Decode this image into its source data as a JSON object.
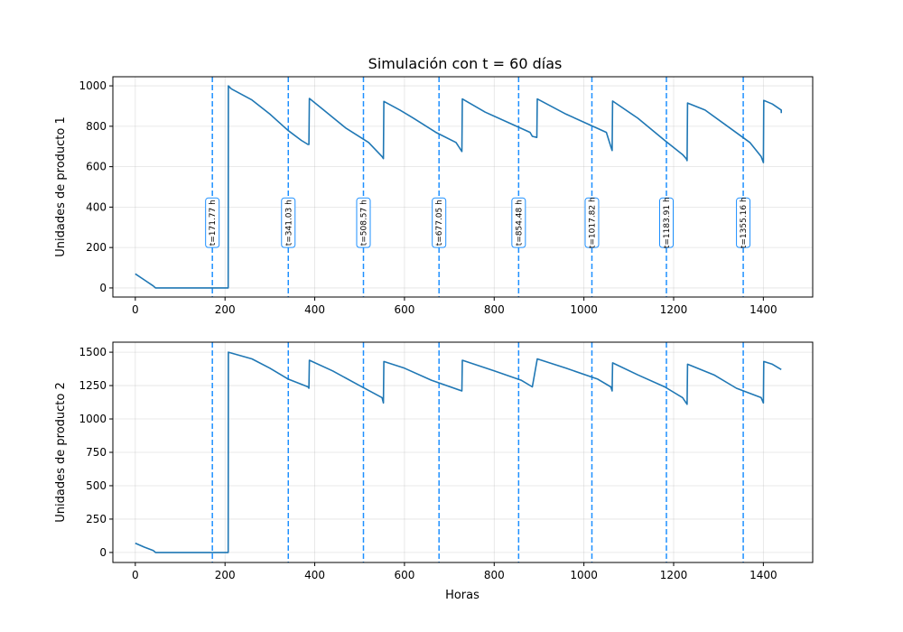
{
  "chart_data": {
    "type": "line",
    "title": "Simulación con t = 60 días",
    "xlabel": "Horas",
    "x_ticks": [
      0,
      200,
      400,
      600,
      800,
      1000,
      1200,
      1400
    ],
    "xlim": [
      -50,
      1510
    ],
    "grid": true,
    "line_color": "#1f77b4",
    "event_color": "#1e90ff",
    "events": [
      {
        "x": 171.77,
        "label": "t=171.77 h"
      },
      {
        "x": 341.03,
        "label": "t=341.03 h"
      },
      {
        "x": 508.57,
        "label": "t=508.57 h"
      },
      {
        "x": 677.05,
        "label": "t=677.05 h"
      },
      {
        "x": 854.48,
        "label": "t=854.48 h"
      },
      {
        "x": 1017.82,
        "label": "t=1017.82 h"
      },
      {
        "x": 1183.91,
        "label": "t=1183.91 h"
      },
      {
        "x": 1355.16,
        "label": "t=1355.16 h"
      }
    ],
    "panels": [
      {
        "ylabel": "Unidades de producto 1",
        "ylim": [
          -45,
          1045
        ],
        "y_ticks": [
          0,
          200,
          400,
          600,
          800,
          1000
        ],
        "event_label_y": [
          200,
          445
        ],
        "series": [
          {
            "x": [
              0,
              20,
              40,
              45,
              205,
              207,
              207.5,
              214,
              260,
              300,
              340,
              370,
              385,
              387,
              388,
              420,
              470,
              520,
              550,
              553,
              554,
              590,
              620,
              670,
              715,
              728,
              729,
              780,
              840,
              880,
              885,
              895,
              896,
              960,
              1010,
              1050,
              1060,
              1063,
              1064,
              1120,
              1180,
              1220,
              1228,
              1230,
              1231,
              1270,
              1320,
              1370,
              1395,
              1400,
              1401,
              1420,
              1440,
              1440
            ],
            "values": [
              70,
              40,
              10,
              0,
              0,
              0,
              1000,
              985,
              930,
              860,
              780,
              730,
              710,
              710,
              938,
              880,
              790,
              720,
              650,
              640,
              923,
              880,
              840,
              770,
              720,
              675,
              935,
              870,
              810,
              770,
              750,
              745,
              935,
              860,
              810,
              770,
              700,
              680,
              925,
              840,
              730,
              660,
              640,
              630,
              915,
              880,
              800,
              720,
              650,
              620,
              928,
              910,
              880,
              865
            ]
          }
        ]
      },
      {
        "ylabel": "Unidades de producto 2",
        "ylim": [
          -75,
          1575
        ],
        "y_ticks": [
          0,
          250,
          500,
          750,
          1000,
          1250,
          1500
        ],
        "series": [
          {
            "x": [
              0,
              20,
              40,
              45,
              205,
              207,
              207.5,
              260,
              300,
              340,
              385,
              387,
              388,
              440,
              500,
              550,
              553,
              554,
              600,
              660,
              728,
              729,
              800,
              860,
              885,
              896,
              960,
              1030,
              1060,
              1063,
              1064,
              1120,
              1180,
              1220,
              1228,
              1230,
              1231,
              1290,
              1340,
              1395,
              1400,
              1401,
              1420,
              1440
            ],
            "values": [
              70,
              40,
              15,
              0,
              0,
              0,
              1500,
              1450,
              1380,
              1300,
              1240,
              1230,
              1440,
              1360,
              1250,
              1160,
              1120,
              1430,
              1380,
              1290,
              1210,
              1440,
              1360,
              1290,
              1240,
              1450,
              1380,
              1300,
              1240,
              1210,
              1420,
              1330,
              1240,
              1160,
              1120,
              1110,
              1410,
              1330,
              1230,
              1160,
              1120,
              1430,
              1410,
              1370
            ]
          }
        ]
      }
    ]
  }
}
